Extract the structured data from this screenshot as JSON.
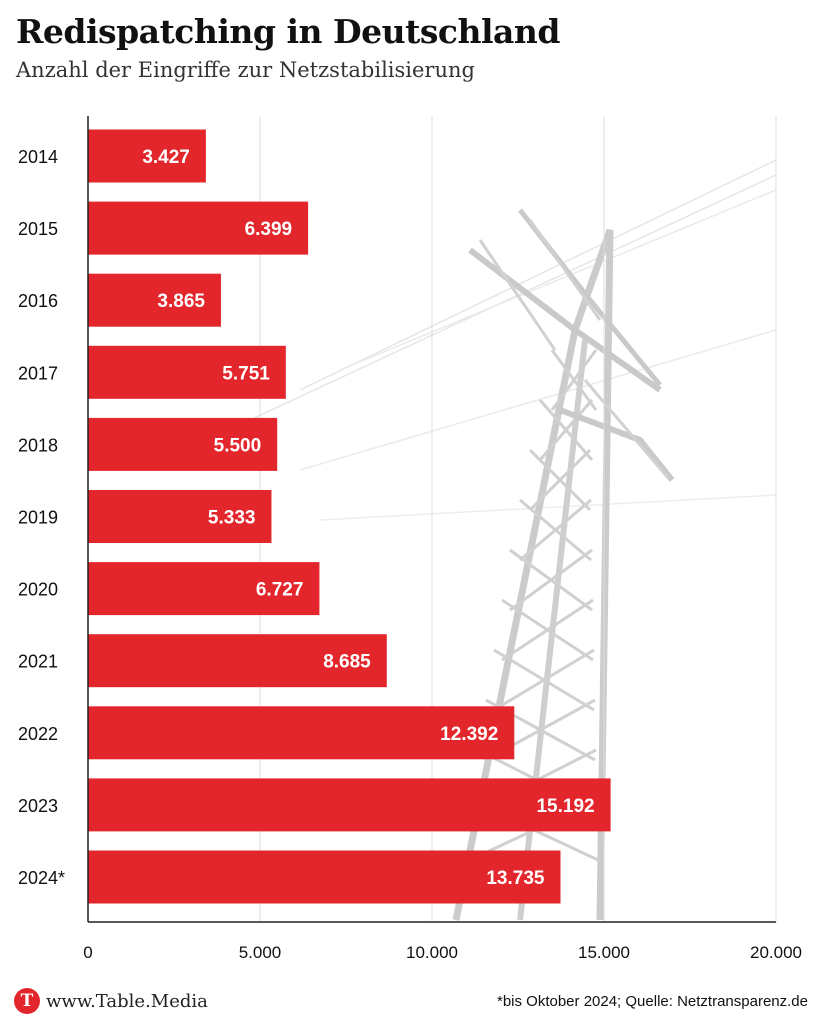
{
  "title": "Redispatching in Deutschland",
  "subtitle": "Anzahl der Eingriffe zur Netzstabilisierung",
  "footer": {
    "site": "www.Table.Media",
    "logo_letter": "T",
    "source": "*bis Oktober 2024; Quelle: Netztransparenz.de"
  },
  "colors": {
    "bar": "#e3262b",
    "bar_label": "#ffffff",
    "grid": "#dddddd",
    "axis": "#222222"
  },
  "chart_data": {
    "type": "bar",
    "orientation": "horizontal",
    "categories": [
      "2014",
      "2015",
      "2016",
      "2017",
      "2018",
      "2019",
      "2020",
      "2021",
      "2022",
      "2023",
      "2024*"
    ],
    "values": [
      3427,
      6399,
      3865,
      5751,
      5500,
      5333,
      6727,
      8685,
      12392,
      15192,
      13735
    ],
    "value_labels": [
      "3.427",
      "6.399",
      "3.865",
      "5.751",
      "5.500",
      "5.333",
      "6.727",
      "8.685",
      "12.392",
      "15.192",
      "13.735"
    ],
    "xlim": [
      0,
      20000
    ],
    "xticks": [
      0,
      5000,
      10000,
      15000,
      20000
    ],
    "xtick_labels": [
      "0",
      "5.000",
      "10.000",
      "15.000",
      "20.000"
    ],
    "grid": true
  }
}
